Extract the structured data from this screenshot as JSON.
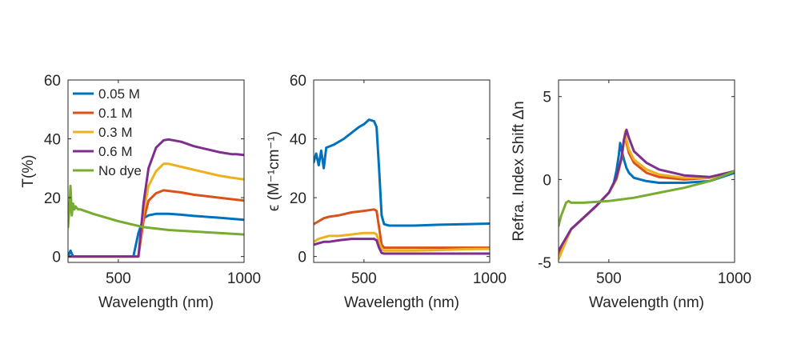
{
  "chart_data": [
    {
      "type": "line",
      "xlabel": "Wavelength (nm)",
      "ylabel": "T(%)",
      "xlim": [
        300,
        1000
      ],
      "ylim": [
        -2,
        60
      ],
      "xticks": [
        500,
        1000
      ],
      "yticks": [
        0,
        20,
        40,
        60
      ],
      "xtick_labels": [
        "500",
        "1000"
      ],
      "ytick_labels": [
        "0",
        "20",
        "40",
        "60"
      ],
      "legend_position": "top-left",
      "series": [
        {
          "name": "0.05 M",
          "color": "#0072BD",
          "x": [
            300,
            310,
            320,
            340,
            400,
            500,
            540,
            560,
            580,
            600,
            620,
            650,
            700,
            750,
            800,
            900,
            1000
          ],
          "y": [
            0,
            2,
            0,
            0,
            0,
            0,
            0,
            0,
            8,
            13,
            14,
            14.5,
            14.5,
            14.2,
            13.8,
            13.2,
            12.5
          ]
        },
        {
          "name": "0.1 M",
          "color": "#D95319",
          "x": [
            300,
            320,
            340,
            400,
            500,
            540,
            560,
            580,
            600,
            620,
            650,
            680,
            700,
            750,
            800,
            900,
            1000
          ],
          "y": [
            0,
            0,
            0,
            0,
            0,
            0,
            0,
            0,
            12,
            19,
            21.5,
            22.5,
            22.3,
            21.8,
            21,
            20,
            19
          ]
        },
        {
          "name": "0.3 M",
          "color": "#EDB120",
          "x": [
            300,
            320,
            340,
            400,
            500,
            540,
            560,
            580,
            600,
            620,
            650,
            680,
            700,
            750,
            800,
            900,
            950,
            1000
          ],
          "y": [
            0,
            0,
            0,
            0,
            0,
            0,
            0,
            0,
            15,
            24,
            29,
            31.5,
            31.5,
            30.5,
            29.5,
            27.5,
            26.8,
            26.2
          ]
        },
        {
          "name": "0.6 M",
          "color": "#7E2F8E",
          "x": [
            300,
            320,
            340,
            400,
            500,
            540,
            560,
            580,
            600,
            620,
            650,
            680,
            700,
            750,
            800,
            900,
            950,
            970,
            1000
          ],
          "y": [
            0,
            0,
            0,
            0,
            0,
            0,
            0,
            0,
            18,
            30,
            37,
            39.5,
            39.8,
            39,
            37.5,
            35.5,
            34.8,
            34.8,
            34.5
          ]
        },
        {
          "name": "No dye",
          "color": "#77AC30",
          "x": [
            300,
            305,
            310,
            315,
            320,
            325,
            330,
            340,
            350,
            400,
            500,
            600,
            700,
            800,
            900,
            1000
          ],
          "y": [
            10,
            16,
            24,
            14,
            18,
            16,
            17,
            16,
            16,
            14.5,
            12,
            10,
            9,
            8.5,
            8,
            7.5
          ]
        }
      ]
    },
    {
      "type": "line",
      "xlabel": "Wavelength (nm)",
      "ylabel": "ϵ (M⁻¹cm⁻¹)",
      "xlim": [
        300,
        1000
      ],
      "ylim": [
        -2,
        60
      ],
      "xticks": [
        500,
        1000
      ],
      "yticks": [
        0,
        20,
        40,
        60
      ],
      "xtick_labels": [
        "500",
        "1000"
      ],
      "ytick_labels": [
        "0",
        "20",
        "40",
        "60"
      ],
      "series": [
        {
          "name": "0.05 M",
          "color": "#0072BD",
          "x": [
            300,
            310,
            320,
            330,
            340,
            350,
            380,
            420,
            450,
            480,
            500,
            520,
            540,
            550,
            560,
            570,
            580,
            600,
            650,
            700,
            800,
            900,
            1000
          ],
          "y": [
            32,
            35,
            31,
            36,
            30,
            37,
            38,
            40,
            42,
            44,
            45,
            46.5,
            46,
            44,
            30,
            14,
            11,
            10.5,
            10.5,
            10.5,
            10.8,
            11,
            11.2
          ]
        },
        {
          "name": "0.1 M",
          "color": "#D95319",
          "x": [
            300,
            320,
            340,
            360,
            400,
            450,
            500,
            540,
            550,
            560,
            570,
            580,
            600,
            700,
            800,
            900,
            1000
          ],
          "y": [
            11,
            12,
            13,
            13.5,
            14,
            15,
            15.5,
            16,
            15.5,
            10,
            4,
            3,
            3,
            3,
            3,
            3,
            3
          ]
        },
        {
          "name": "0.3 M",
          "color": "#EDB120",
          "x": [
            300,
            320,
            340,
            360,
            400,
            450,
            500,
            540,
            550,
            560,
            570,
            580,
            600,
            700,
            800,
            900,
            1000
          ],
          "y": [
            5,
            6,
            6.5,
            7,
            7,
            7.5,
            8,
            8,
            7.5,
            5,
            2.5,
            2,
            2,
            2,
            2.2,
            2.5,
            2.6
          ]
        },
        {
          "name": "0.6 M",
          "color": "#7E2F8E",
          "x": [
            300,
            320,
            340,
            360,
            400,
            450,
            500,
            540,
            550,
            560,
            570,
            580,
            600,
            700,
            800,
            900,
            1000
          ],
          "y": [
            4,
            4.5,
            5,
            5,
            5.5,
            6,
            6,
            6,
            5.5,
            3,
            1.2,
            1,
            1,
            1,
            1,
            1,
            1
          ]
        }
      ]
    },
    {
      "type": "line",
      "xlabel": "Wavelength (nm)",
      "ylabel": "Refra. Index Shift Δn",
      "xlim": [
        300,
        1000
      ],
      "ylim": [
        -5,
        6
      ],
      "xticks": [
        500,
        1000
      ],
      "yticks": [
        -5,
        0,
        5
      ],
      "xtick_labels": [
        "500",
        "1000"
      ],
      "ytick_labels": [
        "-5",
        "0",
        "5"
      ],
      "series": [
        {
          "name": "0.05 M",
          "color": "#0072BD",
          "x": [
            300,
            350,
            400,
            450,
            500,
            520,
            530,
            540,
            545,
            550,
            560,
            570,
            580,
            600,
            650,
            700,
            800,
            900,
            1000
          ],
          "y": [
            -4.5,
            -3,
            -2.3,
            -1.6,
            -0.8,
            -0.2,
            0.5,
            1.5,
            2.2,
            1.8,
            1.2,
            0.7,
            0.4,
            0.1,
            -0.1,
            -0.2,
            -0.2,
            -0.1,
            0.4
          ]
        },
        {
          "name": "0.1 M",
          "color": "#D95319",
          "x": [
            300,
            350,
            400,
            450,
            500,
            530,
            550,
            560,
            565,
            570,
            580,
            600,
            650,
            700,
            800,
            900,
            1000
          ],
          "y": [
            -4.5,
            -3,
            -2.3,
            -1.6,
            -0.8,
            0,
            1.2,
            2.3,
            2.7,
            2.2,
            1.6,
            1,
            0.4,
            0.15,
            0,
            0.1,
            0.5
          ]
        },
        {
          "name": "0.3 M",
          "color": "#EDB120",
          "x": [
            300,
            350,
            400,
            450,
            500,
            530,
            550,
            560,
            565,
            570,
            580,
            600,
            650,
            700,
            800,
            900,
            1000
          ],
          "y": [
            -4.8,
            -3,
            -2.3,
            -1.6,
            -0.8,
            0,
            1.2,
            2.3,
            2.9,
            2.4,
            1.8,
            1.2,
            0.6,
            0.3,
            0.1,
            0.1,
            0.5
          ]
        },
        {
          "name": "0.6 M",
          "color": "#7E2F8E",
          "x": [
            300,
            350,
            400,
            450,
            500,
            530,
            550,
            560,
            570,
            580,
            600,
            650,
            700,
            800,
            900,
            1000
          ],
          "y": [
            -4.3,
            -3,
            -2.3,
            -1.6,
            -0.8,
            0.1,
            1.3,
            2.4,
            3.0,
            2.5,
            1.7,
            1.0,
            0.6,
            0.25,
            0.15,
            0.5
          ]
        },
        {
          "name": "No dye",
          "color": "#77AC30",
          "x": [
            300,
            310,
            320,
            330,
            340,
            350,
            400,
            500,
            600,
            700,
            800,
            900,
            1000
          ],
          "y": [
            -2.8,
            -2.2,
            -1.8,
            -1.4,
            -1.3,
            -1.4,
            -1.4,
            -1.3,
            -1.1,
            -0.8,
            -0.5,
            -0.1,
            0.5
          ]
        }
      ]
    }
  ]
}
